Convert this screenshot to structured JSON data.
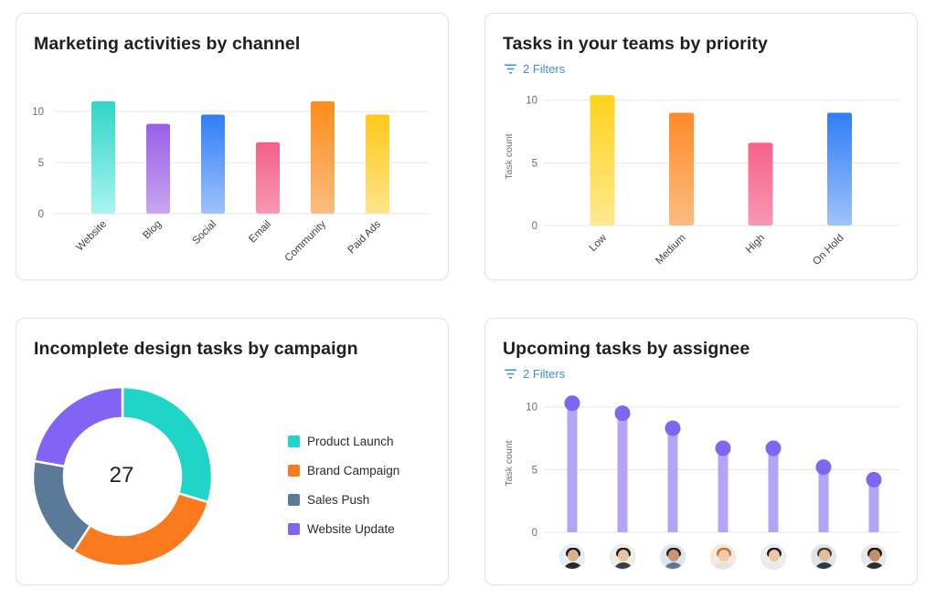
{
  "card_marketing": {
    "title": "Marketing activities by channel",
    "chart_data": {
      "type": "bar",
      "categories": [
        "Website",
        "Blog",
        "Social",
        "Email",
        "Community",
        "Paid Ads"
      ],
      "values": [
        11,
        8.8,
        9.7,
        7,
        11,
        9.7
      ],
      "ylim": [
        0,
        11
      ],
      "yticks": [
        "0",
        "5",
        "10"
      ],
      "grid": true,
      "colors": [
        [
          "#2fd6c6",
          "#a8f4f0"
        ],
        [
          "#9a5ee6",
          "#c8a6f0"
        ],
        [
          "#2f7ef6",
          "#9fc2fb"
        ],
        [
          "#f3608a",
          "#f898b2"
        ],
        [
          "#ff8c1a",
          "#fbbd80"
        ],
        [
          "#ffc81a",
          "#ffe48a"
        ]
      ]
    }
  },
  "card_priority": {
    "title": "Tasks in your teams by priority",
    "filters_label": "2 Filters",
    "chart_data": {
      "type": "bar",
      "categories": [
        "Low",
        "Medium",
        "High",
        "On Hold"
      ],
      "values": [
        10.4,
        9,
        6.6,
        9
      ],
      "ylim": [
        0,
        11
      ],
      "yticks": [
        "0",
        "5",
        "10"
      ],
      "ylabel": "Task count",
      "grid": true,
      "colors": [
        [
          "#ffd21a",
          "#ffe890"
        ],
        [
          "#ff8a28",
          "#fbbd80"
        ],
        [
          "#f5628c",
          "#f898b2"
        ],
        [
          "#2f7ef6",
          "#9fc2fb"
        ]
      ]
    }
  },
  "card_campaign": {
    "title": "Incomplete design tasks by campaign",
    "total": "27",
    "chart_data": {
      "type": "pie",
      "categories": [
        "Product Launch",
        "Brand Campaign",
        "Sales Push",
        "Website Update"
      ],
      "values": [
        8,
        8,
        5,
        6
      ],
      "colors": [
        "#1ed5c7",
        "#fc7a1e",
        "#5b7a9a",
        "#8363f5"
      ],
      "legend": "right"
    }
  },
  "card_assignee": {
    "title": "Upcoming tasks by assignee",
    "filters_label": "2 Filters",
    "chart_data": {
      "type": "bar",
      "categories": [
        "assignee-1",
        "assignee-2",
        "assignee-3",
        "assignee-4",
        "assignee-5",
        "assignee-6",
        "assignee-7"
      ],
      "values": [
        10.3,
        9.5,
        8.3,
        6.7,
        6.7,
        5.2,
        4.2
      ],
      "ylim": [
        0,
        11
      ],
      "yticks": [
        "0",
        "5",
        "10"
      ],
      "ylabel": "Task count",
      "grid": true,
      "bar_color": "#b3a4f6",
      "dot_color": "#7f66f0"
    },
    "avatars": [
      {
        "skin": "#d9b08c",
        "hair": "#1c1410",
        "shirt": "#2a2a2a",
        "bg": "#e8eef3"
      },
      {
        "skin": "#e6c2a2",
        "hair": "#221813",
        "shirt": "#3b3b40",
        "bg": "#f2ece6"
      },
      {
        "skin": "#c99674",
        "hair": "#2b1d14",
        "shirt": "#5b7895",
        "bg": "#dde6ee"
      },
      {
        "skin": "#f0c8a8",
        "hair": "#b5763a",
        "shirt": "#e7e2da",
        "bg": "#f5e8dc"
      },
      {
        "skin": "#e9c6a6",
        "hair": "#1e1613",
        "shirt": "#ece8e2",
        "bg": "#eeeeee"
      },
      {
        "skin": "#e3bda0",
        "hair": "#4a3a2a",
        "shirt": "#2b3a4c",
        "bg": "#dfe4ea"
      },
      {
        "skin": "#c28e6b",
        "hair": "#1a1411",
        "shirt": "#2d2d2d",
        "bg": "#e6e9ec"
      }
    ]
  },
  "icons": {
    "filter": "filter-icon",
    "avatar": "avatar-icon"
  },
  "colors": {
    "filter_text": "#3d8fdb",
    "grid": "#e7e7ea",
    "axis_text": "#6d6e6f"
  }
}
